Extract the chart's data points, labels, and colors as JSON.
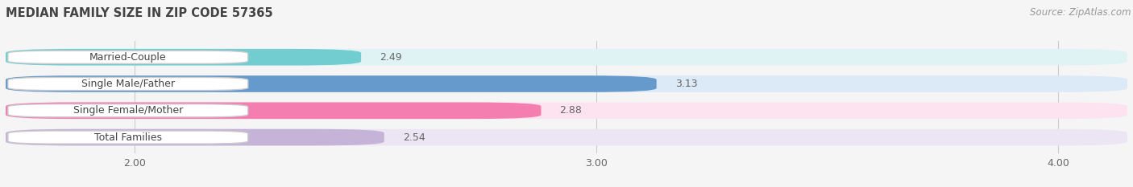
{
  "title": "MEDIAN FAMILY SIZE IN ZIP CODE 57365",
  "source": "Source: ZipAtlas.com",
  "categories": [
    "Married-Couple",
    "Single Male/Father",
    "Single Female/Mother",
    "Total Families"
  ],
  "values": [
    2.49,
    3.13,
    2.88,
    2.54
  ],
  "bar_colors": [
    "#72cdd1",
    "#6699cc",
    "#f47eb0",
    "#c5b3d8"
  ],
  "bar_bg_colors": [
    "#e0f3f4",
    "#dce9f7",
    "#fce3ef",
    "#ece5f4"
  ],
  "xlim_left": 1.72,
  "xlim_right": 4.15,
  "xticks": [
    2.0,
    3.0,
    4.0
  ],
  "xtick_labels": [
    "2.00",
    "3.00",
    "4.00"
  ],
  "label_color": "#666666",
  "title_color": "#444444",
  "source_color": "#999999",
  "value_label_color": "#666666",
  "background_color": "#f5f5f5",
  "bar_height": 0.62,
  "title_fontsize": 10.5,
  "source_fontsize": 8.5,
  "bar_label_fontsize": 9,
  "value_fontsize": 9,
  "tick_fontsize": 9
}
